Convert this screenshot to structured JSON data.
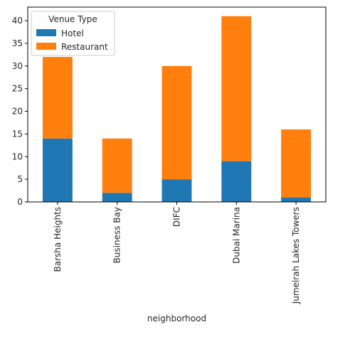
{
  "chart_data": {
    "type": "bar",
    "stacked": true,
    "categories": [
      "Barsha Heights",
      "Business Bay",
      "DIFC",
      "Dubai Marina",
      "Jumeirah Lakes Towers"
    ],
    "series": [
      {
        "name": "Hotel",
        "values": [
          14,
          2,
          5,
          9,
          1
        ],
        "color": "#1f77b4"
      },
      {
        "name": "Restaurant",
        "values": [
          18,
          12,
          25,
          32,
          15
        ],
        "color": "#ff7f0e"
      }
    ],
    "xlabel": "neighborhood",
    "ylabel": "",
    "ylim": [
      0,
      43
    ],
    "yticks": [
      0,
      5,
      10,
      15,
      20,
      25,
      30,
      35,
      40
    ],
    "grid": false,
    "legend": {
      "title": "Venue Type",
      "position": "top-left"
    }
  }
}
